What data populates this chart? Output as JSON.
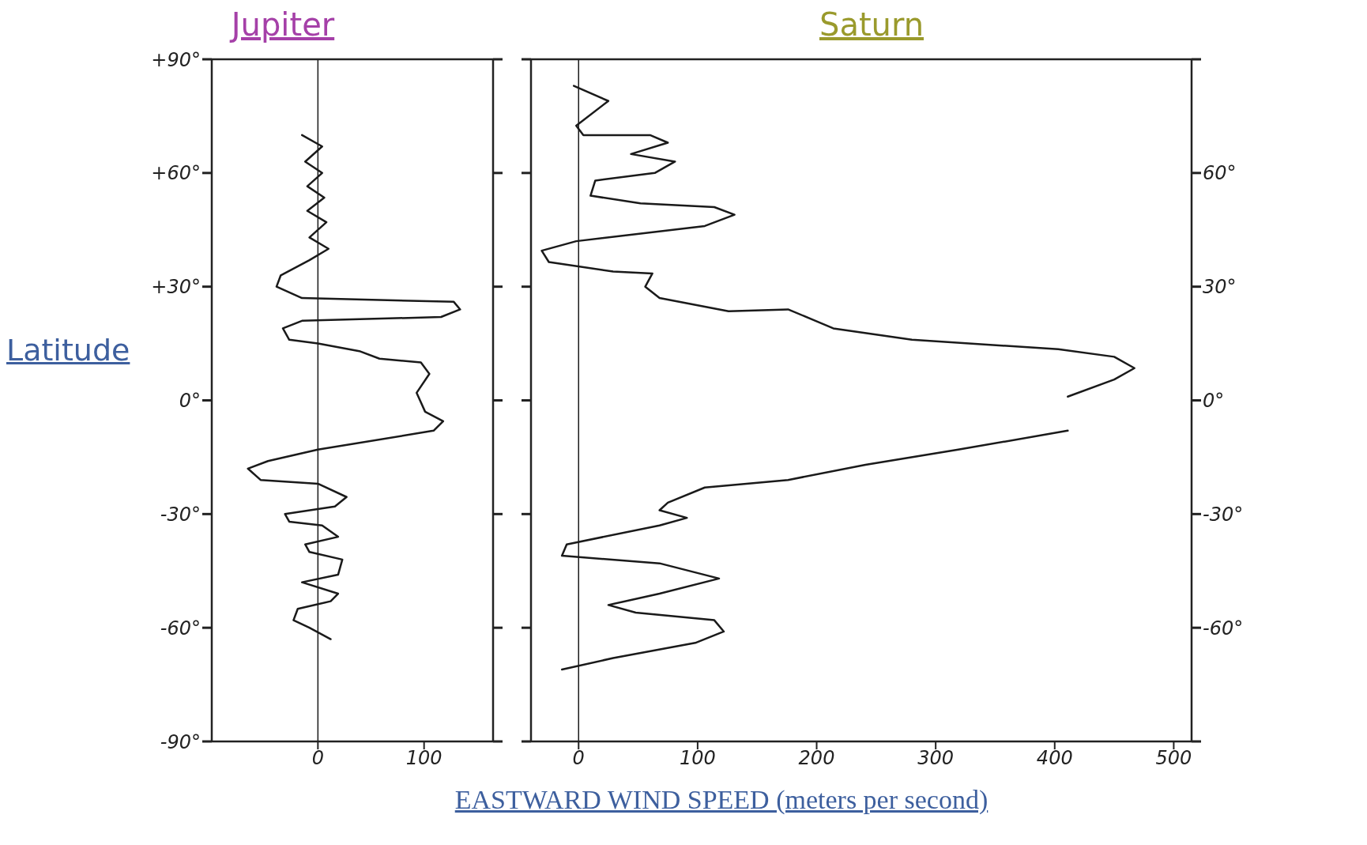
{
  "chart_data": [
    {
      "type": "line",
      "title": "Jupiter",
      "ylabel": "Latitude",
      "xlim": [
        -100,
        165
      ],
      "xticks": [
        0,
        100
      ],
      "ylim": [
        -90,
        90
      ],
      "yticks": [
        {
          "value": -90,
          "label": "-90°"
        },
        {
          "value": -60,
          "label": "-60°"
        },
        {
          "value": -30,
          "label": "-30°"
        },
        {
          "value": 0,
          "label": "0°"
        },
        {
          "value": 30,
          "label": "+30°"
        },
        {
          "value": 60,
          "label": "+60°"
        },
        {
          "value": 90,
          "label": "+90°"
        }
      ],
      "grid": false,
      "marker": "none",
      "line_style": "solid",
      "ref_lines": [
        {
          "axis": "x",
          "value": 0,
          "color": "#1a1a1a"
        }
      ],
      "series": [
        {
          "color": "#1a1a1a",
          "x": [
            -15,
            4,
            -12,
            4,
            -10,
            6,
            -10,
            8,
            -8,
            10,
            -8,
            -35,
            -39,
            -15,
            128,
            134,
            116,
            -15,
            -33,
            -27,
            0,
            39,
            58,
            97,
            105,
            93,
            101,
            118,
            109,
            0,
            -47,
            -66,
            -54,
            0,
            27,
            16,
            -31,
            -27,
            4,
            19,
            -12,
            -8,
            23,
            19,
            -15,
            19,
            12,
            -19,
            -23,
            -8,
            12
          ],
          "values": [
            70,
            67,
            63,
            60,
            56.5,
            53.5,
            50,
            47,
            43,
            40,
            37,
            33,
            30,
            27,
            26,
            24,
            22,
            21,
            19,
            16,
            15,
            13,
            11,
            10,
            7,
            2,
            -3,
            -5.5,
            -8,
            -13,
            -16,
            -18,
            -21,
            -22,
            -25.5,
            -28,
            -30,
            -32,
            -33,
            -36,
            -38,
            -40,
            -42,
            -46,
            -48,
            -51,
            -53,
            -55,
            -58,
            -60,
            -63
          ]
        }
      ]
    },
    {
      "type": "line",
      "title": "Saturn",
      "xlabel": "EASTWARD WIND SPEED (meters per second)",
      "xlim": [
        -40,
        515
      ],
      "xticks": [
        0,
        100,
        200,
        300,
        400,
        500
      ],
      "ylim": [
        -90,
        90
      ],
      "yticks": [
        {
          "value": -90,
          "label": null
        },
        {
          "value": -60,
          "label": "-60°"
        },
        {
          "value": -30,
          "label": "-30°"
        },
        {
          "value": 0,
          "label": "0°"
        },
        {
          "value": 30,
          "label": "30°"
        },
        {
          "value": 60,
          "label": "60°"
        },
        {
          "value": 90,
          "label": null
        }
      ],
      "grid": false,
      "marker": "none",
      "line_style": "solid",
      "ref_lines": [
        {
          "axis": "x",
          "value": 0,
          "color": "#1a1a1a"
        }
      ],
      "series": [
        {
          "color": "#1a1a1a",
          "x": [
            -4,
            25,
            -2,
            4,
            60,
            75,
            44,
            81,
            64,
            14,
            10,
            52,
            114,
            131,
            106,
            -2,
            -31,
            -25,
            29,
            62,
            56,
            68,
            126,
            176,
            199,
            214,
            280,
            403,
            450,
            467,
            450,
            411,
            null,
            411,
            319,
            241,
            176,
            106,
            75,
            68,
            91,
            68,
            -10,
            -14,
            68,
            118,
            68,
            25,
            48,
            114,
            122,
            98,
            29,
            -14
          ],
          "values": [
            83,
            79,
            72.5,
            70,
            70,
            68,
            65,
            63,
            60,
            58,
            54,
            52,
            51,
            49,
            46,
            42,
            39.5,
            36.5,
            34,
            33.5,
            30,
            27,
            23.5,
            24,
            21,
            19,
            16,
            13.5,
            11.5,
            8.5,
            5.5,
            1,
            null,
            -8,
            -13,
            -17,
            -21,
            -23,
            -27,
            -29,
            -31,
            -33,
            -38,
            -41,
            -43,
            -47,
            -51,
            -54,
            -56,
            -58,
            -61,
            -64,
            -68,
            -71
          ]
        }
      ]
    }
  ]
}
